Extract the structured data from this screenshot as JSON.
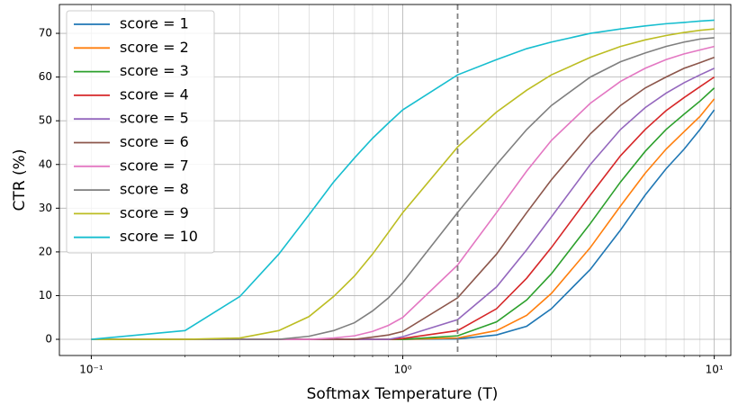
{
  "chart_data": {
    "type": "line",
    "x_label": "Softmax Temperature (T)",
    "y_label": "CTR (%)",
    "x_scale": "log",
    "grid": true,
    "legend": "upper left",
    "x": [
      0.1,
      0.2,
      0.3,
      0.4,
      0.5,
      0.6,
      0.7,
      0.8,
      0.9,
      1.0,
      1.5,
      2,
      2.5,
      3,
      4,
      5,
      6,
      7,
      8,
      9,
      10
    ],
    "xlim": [
      0.079,
      11.3
    ],
    "ylim": [
      -3.7,
      76.6
    ],
    "xticks": [
      {
        "value": 0.1,
        "label": "10⁻¹"
      },
      {
        "value": 1,
        "label": "10⁰"
      },
      {
        "value": 10,
        "label": "10¹"
      }
    ],
    "xminorticks": [
      0.2,
      0.3,
      0.4,
      0.5,
      0.6,
      0.7,
      0.8,
      0.9,
      2,
      3,
      4,
      5,
      6,
      7,
      8,
      9
    ],
    "yticks": [
      0,
      10,
      20,
      30,
      40,
      50,
      60,
      70
    ],
    "vline": 1.5,
    "vline_color": "#808080",
    "series": [
      {
        "name": "score = 1",
        "color": "#1f77b4",
        "values": [
          0,
          0,
          0,
          0,
          0,
          0,
          0,
          0,
          0,
          0,
          0.1,
          1,
          3,
          7,
          16,
          25,
          33,
          39,
          43.5,
          48,
          52.5
        ]
      },
      {
        "name": "score = 2",
        "color": "#ff7f0e",
        "values": [
          0,
          0,
          0,
          0,
          0,
          0,
          0,
          0,
          0,
          0,
          0.3,
          2,
          5.5,
          10.5,
          21,
          30.5,
          38,
          43.5,
          47.5,
          51,
          55
        ]
      },
      {
        "name": "score = 3",
        "color": "#2ca02c",
        "values": [
          0,
          0,
          0,
          0,
          0,
          0,
          0,
          0,
          0,
          0,
          0.8,
          4,
          9,
          15,
          26.5,
          36,
          43,
          48,
          51.5,
          54.5,
          57.5
        ]
      },
      {
        "name": "score = 4",
        "color": "#d62728",
        "values": [
          0,
          0,
          0,
          0,
          0,
          0,
          0,
          0,
          0,
          0.2,
          2,
          7,
          14,
          21,
          33,
          42,
          48,
          52.3,
          55.3,
          57.8,
          60
        ]
      },
      {
        "name": "score = 5",
        "color": "#9467bd",
        "values": [
          0,
          0,
          0,
          0,
          0,
          0,
          0,
          0,
          0,
          0.6,
          4.5,
          12,
          20.5,
          28,
          40,
          48,
          53,
          56.3,
          58.7,
          60.5,
          62
        ]
      },
      {
        "name": "score = 6",
        "color": "#8c564b",
        "values": [
          0,
          0,
          0,
          0,
          0,
          0,
          0,
          0.5,
          1,
          1.8,
          9.5,
          19.5,
          29,
          36.5,
          47,
          53.5,
          57.5,
          60,
          62,
          63.3,
          64.5
        ]
      },
      {
        "name": "score = 7",
        "color": "#e377c2",
        "values": [
          0,
          0,
          0,
          0,
          0,
          0.3,
          0.8,
          1.8,
          3.2,
          5,
          17,
          29,
          38.5,
          45.5,
          54,
          59,
          62,
          64,
          65.3,
          66.2,
          67
        ]
      },
      {
        "name": "score = 8",
        "color": "#7f7f7f",
        "values": [
          0,
          0,
          0,
          0,
          0.7,
          2,
          3.8,
          6.5,
          9.5,
          13,
          29,
          40,
          48,
          53.5,
          60,
          63.5,
          65.5,
          67,
          68,
          68.7,
          69
        ]
      },
      {
        "name": "score = 9",
        "color": "#bcbd22",
        "values": [
          0,
          0,
          0.3,
          2,
          5.2,
          9.8,
          14.5,
          19.5,
          24.5,
          29,
          44,
          52,
          57,
          60.5,
          64.5,
          67,
          68.5,
          69.5,
          70.2,
          70.7,
          71
        ]
      },
      {
        "name": "score = 10",
        "color": "#17becf",
        "values": [
          0,
          2,
          9.8,
          19.5,
          28.5,
          36,
          41.5,
          46,
          49.5,
          52.5,
          60.5,
          64,
          66.5,
          68,
          70,
          71,
          71.7,
          72.2,
          72.5,
          72.8,
          73
        ]
      }
    ]
  }
}
